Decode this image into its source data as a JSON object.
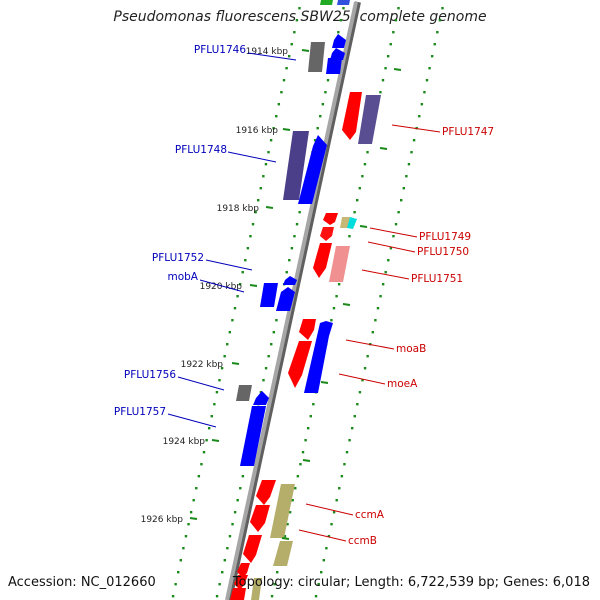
{
  "title": "Pseudomonas fluorescens SBW25, complete genome",
  "accession": "Accession: NC_012660",
  "genome_stats": "Topology: circular; Length: 6,722,539 bp; Genes: 6,018",
  "colors": {
    "backbone": "#8a8a8a",
    "left_label": "#0000bb",
    "right_label": "#cc0000",
    "tick": "#1a8a1a",
    "tick_text": "#222222"
  },
  "ticks": [
    {
      "label": "1914 kbp"
    },
    {
      "label": "1916 kbp"
    },
    {
      "label": "1918 kbp"
    },
    {
      "label": "1920 kbp"
    },
    {
      "label": "1922 kbp"
    },
    {
      "label": "1924 kbp"
    },
    {
      "label": "1926 kbp"
    }
  ],
  "left_labels": [
    "PFLU1746",
    "PFLU1748",
    "PFLU1752",
    "mobA",
    "PFLU1756",
    "PFLU1757"
  ],
  "right_labels": [
    "PFLU1747",
    "PFLU1749",
    "PFLU1750",
    "PFLU1751",
    "moaB",
    "moeA",
    "ccmA",
    "ccmB"
  ],
  "features": [
    {
      "label": "PFLU1746",
      "strand": "+",
      "color": "#666666"
    },
    {
      "label": "PFLU1747",
      "strand": "-",
      "color": "#5a4e93"
    },
    {
      "label": "PFLU1748",
      "strand": "+",
      "color": "#4b3f8a"
    },
    {
      "label": "PFLU1749",
      "strand": "-",
      "color": "#ff0000"
    },
    {
      "label": "PFLU1750",
      "strand": "-",
      "color": "#ff1010"
    },
    {
      "label": "PFLU1751",
      "strand": "-",
      "color": "#f09090"
    },
    {
      "label": "PFLU1752",
      "strand": "+",
      "color": "#0000ff"
    },
    {
      "label": "mobA",
      "strand": "+",
      "color": "#0000ff"
    },
    {
      "label": "moaB",
      "strand": "-",
      "color": "#ff0000"
    },
    {
      "label": "moeA",
      "strand": "+",
      "color": "#0000ff"
    },
    {
      "label": "PFLU1756",
      "strand": "+",
      "color": "#666666"
    },
    {
      "label": "PFLU1757",
      "strand": "+",
      "color": "#0000ff"
    },
    {
      "label": "ccmA",
      "strand": "-",
      "color": "#ff0000"
    },
    {
      "label": "ccmB",
      "strand": "-",
      "color": "#b5ad6a"
    }
  ]
}
